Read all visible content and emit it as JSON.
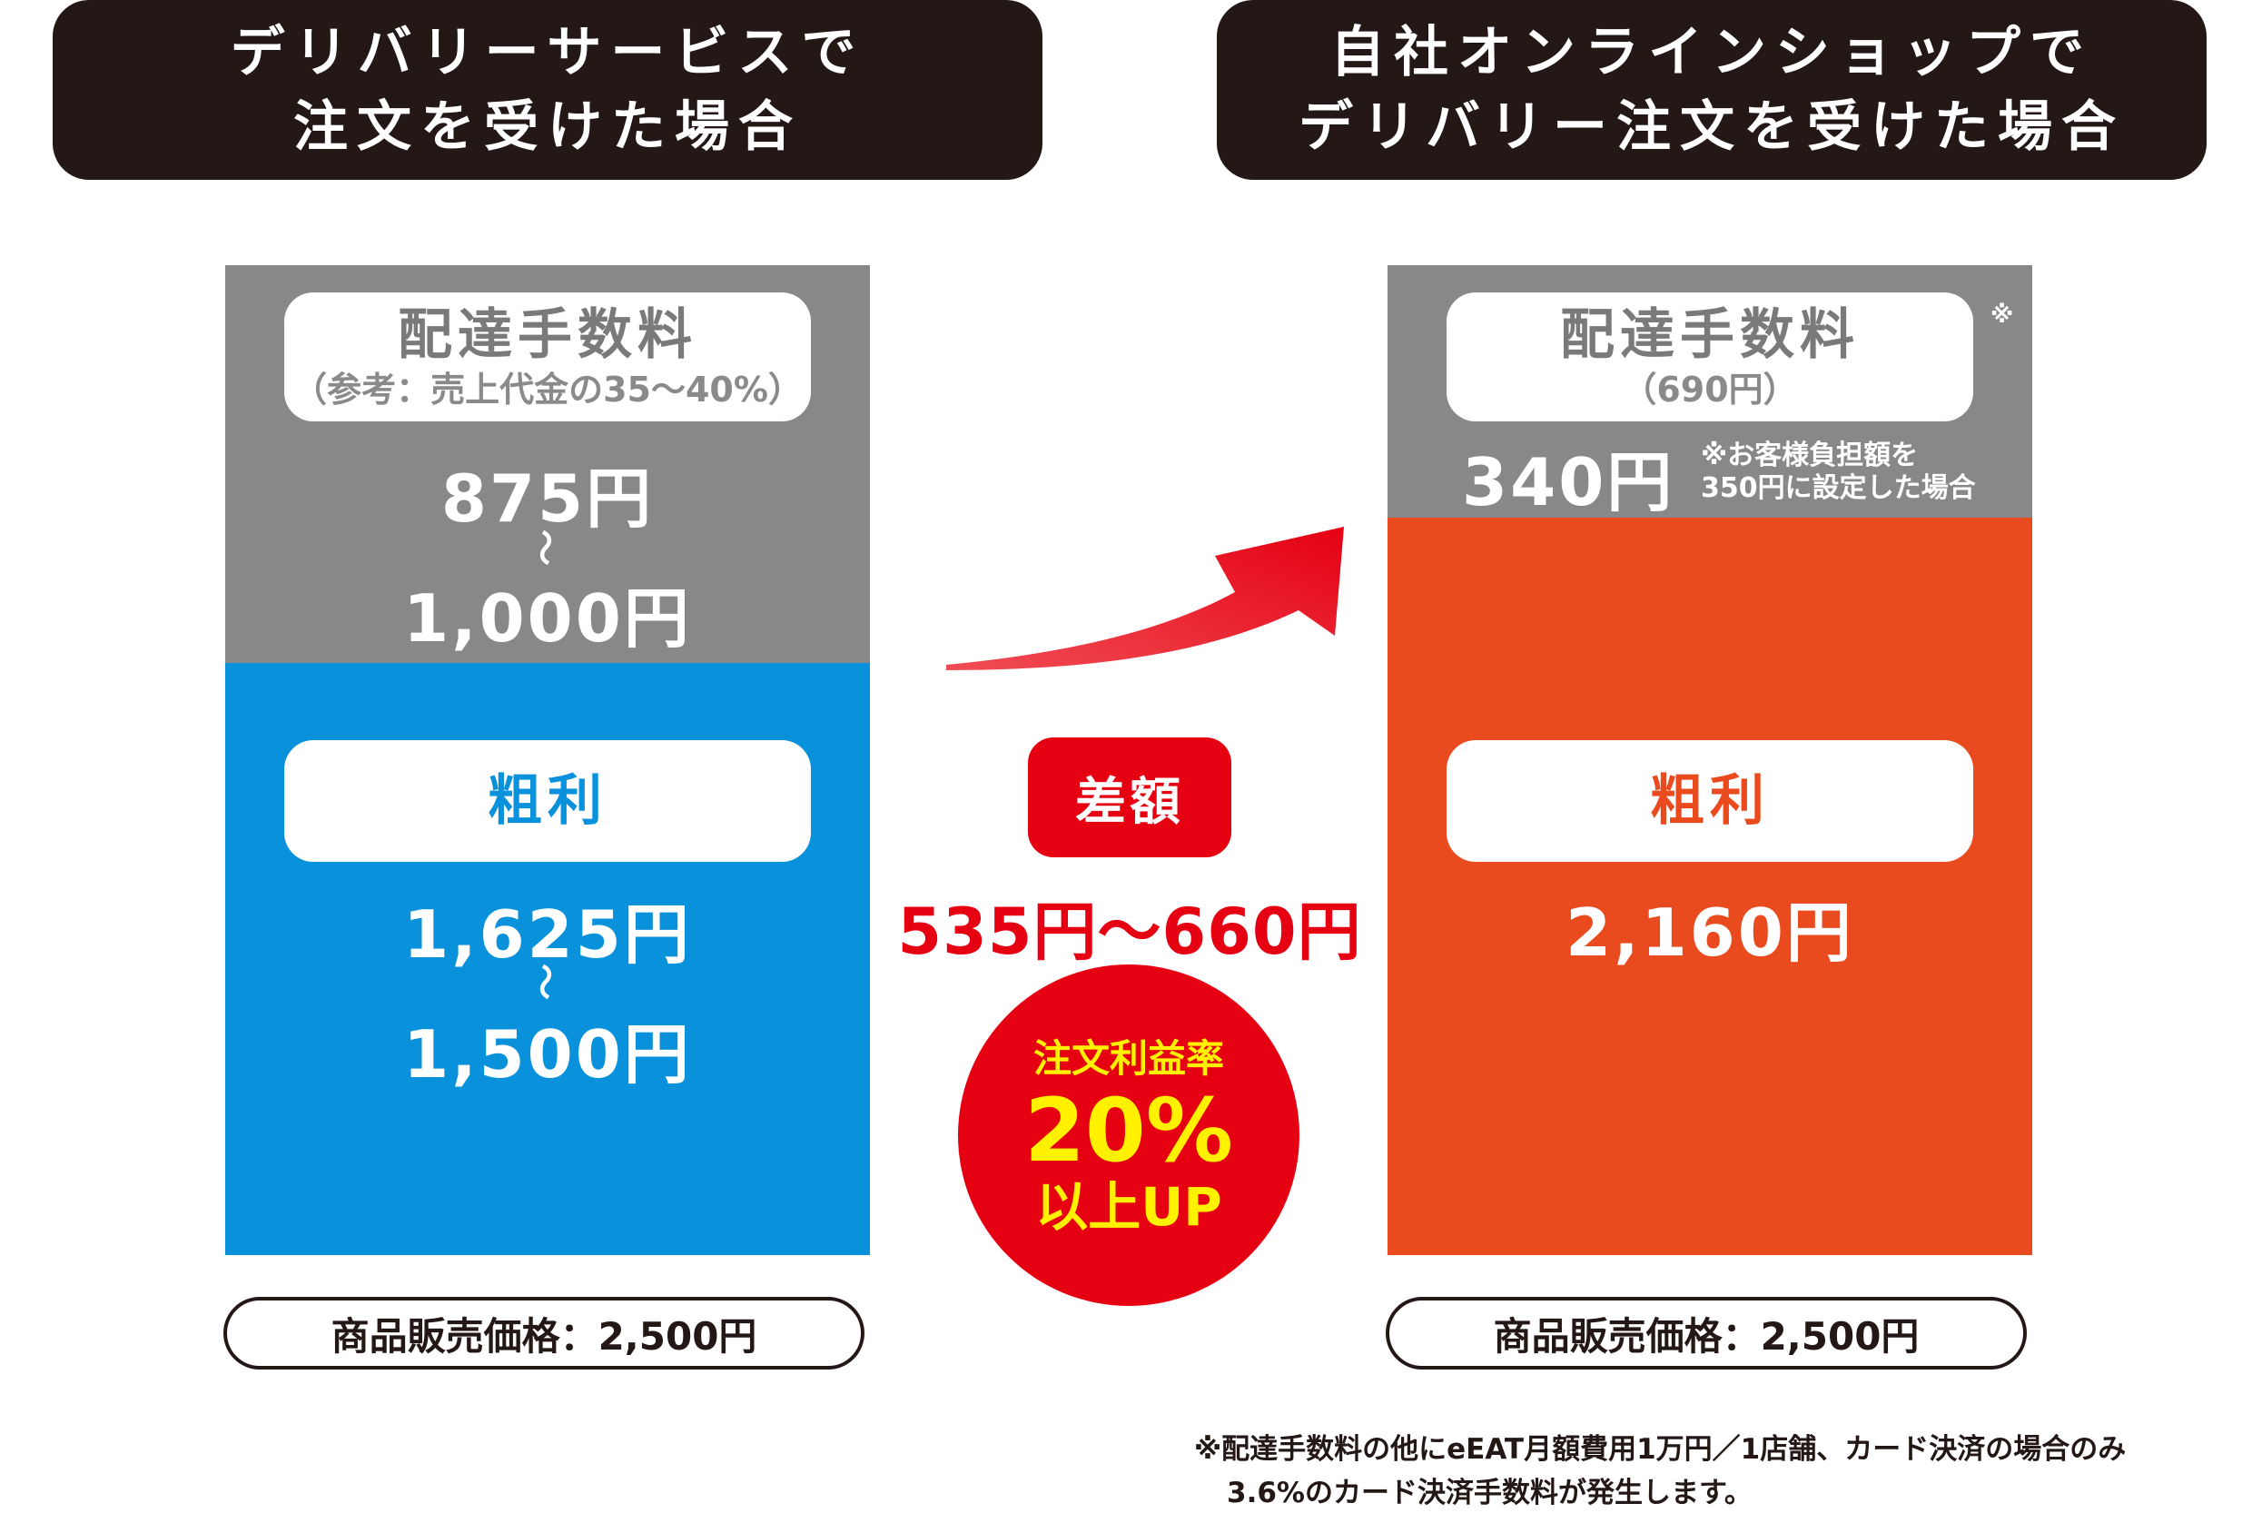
{
  "colors": {
    "header_bg": "#231815",
    "fee_gray": "#888888",
    "profit_blue": "#0a91dc",
    "profit_orange": "#e94b1e",
    "accent_red": "#e50012",
    "badge_yellow": "#fff100"
  },
  "left": {
    "header_line1": "デリバリーサービスで",
    "header_line2": "注文を受けた場合",
    "fee_label": "配達手数料",
    "fee_note": "（参考：売上代金の35〜40%）",
    "fee_value_from": "875円",
    "fee_value_to": "1,000円",
    "range_mark": "〜",
    "profit_label": "粗利",
    "profit_value_from": "1,625円",
    "profit_value_to": "1,500円",
    "price_label": "商品販売価格：2,500円"
  },
  "right": {
    "header_line1": "自社オンラインショップで",
    "header_line2": "デリバリー注文を受けた場合",
    "fee_label": "配達手数料",
    "fee_sub": "（690円）",
    "fee_mark": "※",
    "fee_value": "340円",
    "fee_note_line1": "※お客様負担額を",
    "fee_note_line2": "350円に設定した場合",
    "profit_label": "粗利",
    "profit_value": "2,160円",
    "price_label": "商品販売価格：2,500円"
  },
  "middle": {
    "diff_badge": "差額",
    "diff_value": "535円〜660円",
    "circle_line1": "注文利益率",
    "circle_line2": "20%",
    "circle_line3": "以上UP"
  },
  "footnote": {
    "line1": "※配達手数料の他にeEAT月額費用1万円／1店舗、カード決済の場合のみ",
    "line2": "3.6%のカード決済手数料が発生します。"
  }
}
